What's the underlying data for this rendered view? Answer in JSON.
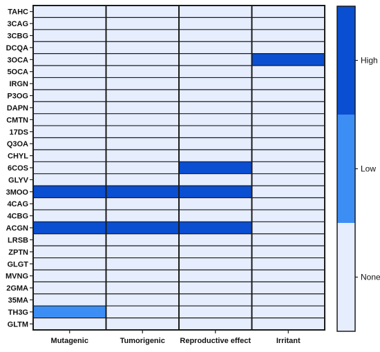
{
  "chart_data": {
    "type": "heatmap",
    "title": "",
    "xlabel": "",
    "ylabel": "",
    "columns": [
      "Mutagenic",
      "Tumorigenic",
      "Reproductive effect",
      "Irritant"
    ],
    "rows": [
      "TAHC",
      "3CAG",
      "3CBG",
      "DCQA",
      "3OCA",
      "5OCA",
      "IRGN",
      "P3OG",
      "DAPN",
      "CMTN",
      "17DS",
      "Q3OA",
      "CHYL",
      "6COS",
      "GLYV",
      "3MOO",
      "4CAG",
      "4CBG",
      "ACGN",
      "LRSB",
      "ZPTN",
      "GLGT",
      "MVNG",
      "2GMA",
      "35MA",
      "TH3G",
      "GLTM"
    ],
    "levels": [
      "None",
      "Low",
      "High"
    ],
    "values": [
      [
        0,
        0,
        0,
        0
      ],
      [
        0,
        0,
        0,
        0
      ],
      [
        0,
        0,
        0,
        0
      ],
      [
        0,
        0,
        0,
        0
      ],
      [
        0,
        0,
        0,
        2
      ],
      [
        0,
        0,
        0,
        0
      ],
      [
        0,
        0,
        0,
        0
      ],
      [
        0,
        0,
        0,
        0
      ],
      [
        0,
        0,
        0,
        0
      ],
      [
        0,
        0,
        0,
        0
      ],
      [
        0,
        0,
        0,
        0
      ],
      [
        0,
        0,
        0,
        0
      ],
      [
        0,
        0,
        0,
        0
      ],
      [
        0,
        0,
        2,
        0
      ],
      [
        0,
        0,
        0,
        0
      ],
      [
        2,
        2,
        2,
        0
      ],
      [
        0,
        0,
        0,
        0
      ],
      [
        0,
        0,
        0,
        0
      ],
      [
        2,
        2,
        2,
        0
      ],
      [
        0,
        0,
        0,
        0
      ],
      [
        0,
        0,
        0,
        0
      ],
      [
        0,
        0,
        0,
        0
      ],
      [
        0,
        0,
        0,
        0
      ],
      [
        0,
        0,
        0,
        0
      ],
      [
        0,
        0,
        0,
        0
      ],
      [
        1,
        0,
        0,
        0
      ],
      [
        0,
        0,
        0,
        0
      ]
    ],
    "colors": {
      "None": "#e6edfc",
      "Low": "#3d8ef4",
      "High": "#0a4ed2"
    },
    "colorbar": {
      "labels": [
        "None",
        "Low",
        "High"
      ],
      "position": "right"
    },
    "grid": true
  }
}
